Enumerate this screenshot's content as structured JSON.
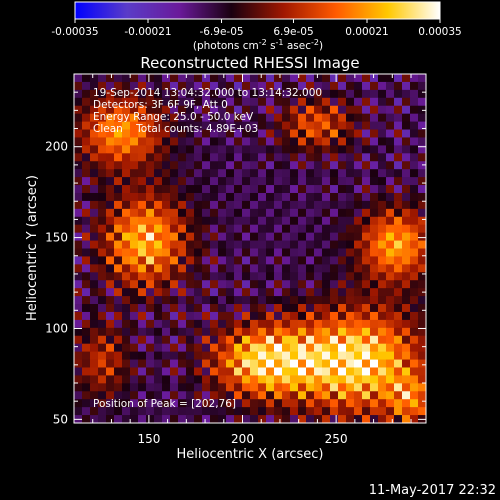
{
  "chart_data": {
    "type": "heatmap",
    "title": "Reconstructed RHESSI Image",
    "xlabel": "Heliocentric X (arcsec)",
    "ylabel": "Heliocentric Y (arcsec)",
    "xlim": [
      110,
      298
    ],
    "ylim": [
      48,
      240
    ],
    "x_ticks": [
      150,
      200,
      250
    ],
    "y_ticks": [
      50,
      100,
      150,
      200
    ],
    "colorbar": {
      "min": -0.00035,
      "max": 0.00035,
      "tick_labels": [
        "-0.00035",
        "-0.00021",
        "-6.9e-05",
        "6.9e-05",
        "0.00021",
        "0.00035"
      ],
      "units_text": "(photons cm",
      "units_sup1": "-2",
      "units_mid1": " s",
      "units_sup2": "-1",
      "units_mid2": " asec",
      "units_sup3": "-2",
      "units_end": ")",
      "colormap": [
        "#0000ff",
        "#5a3cc8",
        "#6a1a9a",
        "#1a0010",
        "#a01800",
        "#ff5a00",
        "#ffc800",
        "#ffffff"
      ]
    },
    "annotations": {
      "time_range": "19-Sep-2014 13:04:32.000 to 13:14:32.000",
      "detectors": "Detectors: 3F 6F 9F, Att 0",
      "energy_range": "Energy Range: 25.0 - 50.0 keV",
      "algorithm": "Clean    Total counts: 4.89E+03",
      "peak_label": "Position of Peak = [202,76]"
    },
    "sources": [
      {
        "x": 262,
        "y": 82,
        "peak": 1.0,
        "sx": 24,
        "sy": 20
      },
      {
        "x": 212,
        "y": 82,
        "peak": 0.95,
        "sx": 20,
        "sy": 14
      },
      {
        "x": 148,
        "y": 148,
        "peak": 0.85,
        "sx": 16,
        "sy": 18
      },
      {
        "x": 282,
        "y": 146,
        "peak": 0.8,
        "sx": 14,
        "sy": 14
      },
      {
        "x": 135,
        "y": 208,
        "peak": 0.75,
        "sx": 16,
        "sy": 14
      },
      {
        "x": 240,
        "y": 212,
        "peak": 0.55,
        "sx": 14,
        "sy": 10
      },
      {
        "x": 125,
        "y": 82,
        "peak": 0.45,
        "sx": 10,
        "sy": 14
      },
      {
        "x": 290,
        "y": 60,
        "peak": 0.5,
        "sx": 8,
        "sy": 10
      }
    ]
  },
  "footer": {
    "date": "11-May-2017 22:32"
  }
}
